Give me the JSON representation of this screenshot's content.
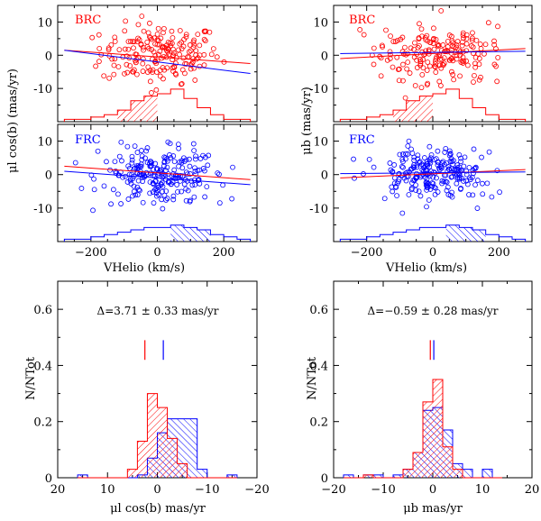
{
  "figure": {
    "panels": {
      "pm_l_brc": {
        "tag": "BRC"
      },
      "pm_b_brc": {
        "tag": "BRC"
      },
      "pm_l_frc": {
        "tag": "FRC"
      },
      "pm_b_frc": {
        "tag": "FRC"
      }
    },
    "labels": {
      "y_mul_top": "μl cos(b) (mas/yr)",
      "y_mub_top": "μb (mas/yr)",
      "x_vhelio": "VHelio (km/s)",
      "y_frac": "N/NTot",
      "x_mul_bottom": "μl cos(b) mas/yr",
      "x_mub_bottom": "μb mas/yr"
    },
    "annotations": {
      "delta_l": "Δ=3.71 ± 0.33 mas/yr",
      "delta_b": "Δ=−0.59 ± 0.28 mas/yr"
    }
  },
  "colors": {
    "brc": "#ff0000",
    "frc": "#0000ff"
  },
  "chart_data": [
    {
      "id": "pm_l_brc",
      "type": "scatter",
      "tag": "BRC",
      "xlim": [
        -300,
        300
      ],
      "ylim": [
        -20,
        15
      ],
      "yticks": [
        -10,
        0,
        10
      ],
      "xticks": [
        -200,
        0,
        200
      ],
      "ylabel": "μl cos(b) (mas/yr)",
      "xlabel": "",
      "series": [
        {
          "name": "BRC stars",
          "color": "red",
          "style": "open-circle",
          "n": 190,
          "x_range": [
            -250,
            250
          ],
          "y_mean": 0.5,
          "y_sigma": 4.5
        }
      ],
      "fit_lines": [
        {
          "name": "BRC fit",
          "color": "red",
          "points": [
            [
              -280,
              1.5
            ],
            [
              280,
              -2.5
            ]
          ]
        },
        {
          "name": "FRC fit",
          "color": "blue",
          "points": [
            [
              -280,
              1.5
            ],
            [
              280,
              -5.5
            ]
          ]
        }
      ],
      "velocity_histogram": {
        "bins": [
          -280,
          -240,
          -200,
          -160,
          -120,
          -80,
          -40,
          0,
          40,
          80,
          120,
          160,
          200,
          240,
          280
        ],
        "counts": [
          1,
          1,
          2,
          3,
          5,
          9,
          11,
          12,
          14,
          10,
          6,
          3,
          1,
          1
        ],
        "shaded_range": [
          -120,
          20
        ],
        "color": "red"
      }
    },
    {
      "id": "pm_b_brc",
      "type": "scatter",
      "tag": "BRC",
      "xlim": [
        -300,
        300
      ],
      "ylim": [
        -20,
        15
      ],
      "yticks": [
        -10,
        0,
        10
      ],
      "xticks": [
        -200,
        0,
        200
      ],
      "ylabel": "μb (mas/yr)",
      "xlabel": "",
      "series": [
        {
          "name": "BRC stars",
          "color": "red",
          "style": "open-circle",
          "n": 190,
          "x_range": [
            -250,
            250
          ],
          "y_mean": 0.5,
          "y_sigma": 4.0
        }
      ],
      "fit_lines": [
        {
          "name": "BRC fit",
          "color": "red",
          "points": [
            [
              -280,
              -1.0
            ],
            [
              280,
              2.0
            ]
          ]
        },
        {
          "name": "FRC fit",
          "color": "blue",
          "points": [
            [
              -280,
              0.5
            ],
            [
              280,
              1.2
            ]
          ]
        }
      ],
      "velocity_histogram": {
        "bins": [
          -280,
          -240,
          -200,
          -160,
          -120,
          -80,
          -40,
          0,
          40,
          80,
          120,
          160,
          200,
          240,
          280
        ],
        "counts": [
          1,
          1,
          2,
          3,
          5,
          9,
          11,
          12,
          14,
          10,
          6,
          3,
          1,
          1
        ],
        "shaded_range": [
          -120,
          20
        ],
        "color": "red"
      }
    },
    {
      "id": "pm_l_frc",
      "type": "scatter",
      "tag": "FRC",
      "xlim": [
        -300,
        300
      ],
      "ylim": [
        -20,
        15
      ],
      "yticks": [
        -10,
        0,
        10
      ],
      "xticks": [
        -200,
        0,
        200
      ],
      "ylabel": "μl cos(b) (mas/yr)",
      "xlabel": "VHelio (km/s)",
      "series": [
        {
          "name": "FRC stars",
          "color": "blue",
          "style": "open-circle",
          "n": 230,
          "x_range": [
            -250,
            250
          ],
          "y_mean": -0.5,
          "y_sigma": 4.0
        }
      ],
      "fit_lines": [
        {
          "name": "BRC fit",
          "color": "red",
          "points": [
            [
              -280,
              2.5
            ],
            [
              280,
              -1.5
            ]
          ]
        },
        {
          "name": "FRC fit",
          "color": "blue",
          "points": [
            [
              -280,
              1.0
            ],
            [
              280,
              -3.0
            ]
          ]
        }
      ],
      "velocity_histogram": {
        "bins": [
          -280,
          -240,
          -200,
          -160,
          -120,
          -80,
          -40,
          0,
          40,
          80,
          120,
          160,
          200,
          240,
          280
        ],
        "counts": [
          1,
          1,
          2,
          3,
          4,
          5,
          6,
          6,
          7,
          6,
          5,
          3,
          2,
          1
        ],
        "shaded_range": [
          40,
          160
        ],
        "color": "blue"
      }
    },
    {
      "id": "pm_b_frc",
      "type": "scatter",
      "tag": "FRC",
      "xlim": [
        -300,
        300
      ],
      "ylim": [
        -20,
        15
      ],
      "yticks": [
        -10,
        0,
        10
      ],
      "xticks": [
        -200,
        0,
        200
      ],
      "ylabel": "μb (mas/yr)",
      "xlabel": "VHelio (km/s)",
      "series": [
        {
          "name": "FRC stars",
          "color": "blue",
          "style": "open-circle",
          "n": 230,
          "x_range": [
            -250,
            250
          ],
          "y_mean": 0.3,
          "y_sigma": 3.5
        }
      ],
      "fit_lines": [
        {
          "name": "BRC fit",
          "color": "red",
          "points": [
            [
              -280,
              -1.0
            ],
            [
              280,
              1.5
            ]
          ]
        },
        {
          "name": "FRC fit",
          "color": "blue",
          "points": [
            [
              -280,
              0.3
            ],
            [
              280,
              0.8
            ]
          ]
        }
      ],
      "velocity_histogram": {
        "bins": [
          -280,
          -240,
          -200,
          -160,
          -120,
          -80,
          -40,
          0,
          40,
          80,
          120,
          160,
          200,
          240,
          280
        ],
        "counts": [
          1,
          1,
          2,
          3,
          4,
          5,
          6,
          6,
          7,
          6,
          5,
          3,
          2,
          1
        ],
        "shaded_range": [
          40,
          160
        ],
        "color": "blue"
      }
    },
    {
      "id": "hist_mul",
      "type": "bar",
      "title": "",
      "annotation": "Δ=3.71 ± 0.33 mas/yr",
      "xlabel": "μl cos(b) mas/yr",
      "ylabel": "N/NTot",
      "xlim": [
        20,
        -20
      ],
      "ylim": [
        0,
        0.7
      ],
      "xticks": [
        20,
        10,
        0,
        -10,
        -20
      ],
      "yticks": [
        0,
        0.2,
        0.4,
        0.6
      ],
      "bin_edges": [
        16,
        14,
        12,
        10,
        8,
        6,
        4,
        2,
        0,
        -2,
        -4,
        -6,
        -8,
        -10,
        -12,
        -14,
        -16
      ],
      "series": [
        {
          "name": "BRC",
          "color": "red",
          "values": [
            0.0,
            0.0,
            0.0,
            0.0,
            0.0,
            0.03,
            0.13,
            0.3,
            0.25,
            0.14,
            0.05,
            0.0,
            0.0,
            0.0,
            0.0,
            0.0
          ]
        },
        {
          "name": "FRC",
          "color": "blue",
          "values": [
            0.01,
            0.0,
            0.0,
            0.0,
            0.0,
            0.0,
            0.01,
            0.07,
            0.16,
            0.21,
            0.21,
            0.21,
            0.03,
            0.0,
            0.0,
            0.01
          ]
        }
      ],
      "means": {
        "BRC": 2.5,
        "FRC": -1.2
      }
    },
    {
      "id": "hist_mub",
      "type": "bar",
      "title": "",
      "annotation": "Δ=−0.59 ± 0.28 mas/yr",
      "xlabel": "μb mas/yr",
      "ylabel": "N/NTot",
      "xlim": [
        -20,
        20
      ],
      "ylim": [
        0,
        0.7
      ],
      "xticks": [
        -20,
        -10,
        0,
        10,
        20
      ],
      "yticks": [
        0,
        0.2,
        0.4,
        0.6
      ],
      "bin_edges": [
        -18,
        -16,
        -14,
        -12,
        -10,
        -8,
        -6,
        -4,
        -2,
        0,
        2,
        4,
        6,
        8,
        10,
        12,
        14
      ],
      "series": [
        {
          "name": "BRC",
          "color": "red",
          "values": [
            0.0,
            0.0,
            0.01,
            0.0,
            0.0,
            0.0,
            0.03,
            0.09,
            0.27,
            0.35,
            0.11,
            0.03,
            0.0,
            0.0,
            0.0,
            0.0
          ]
        },
        {
          "name": "FRC",
          "color": "blue",
          "values": [
            0.01,
            0.0,
            0.01,
            0.01,
            0.0,
            0.01,
            0.03,
            0.09,
            0.24,
            0.25,
            0.17,
            0.05,
            0.03,
            0.0,
            0.03,
            0.0
          ]
        }
      ],
      "means": {
        "BRC": -0.5,
        "FRC": 0.2
      }
    }
  ]
}
